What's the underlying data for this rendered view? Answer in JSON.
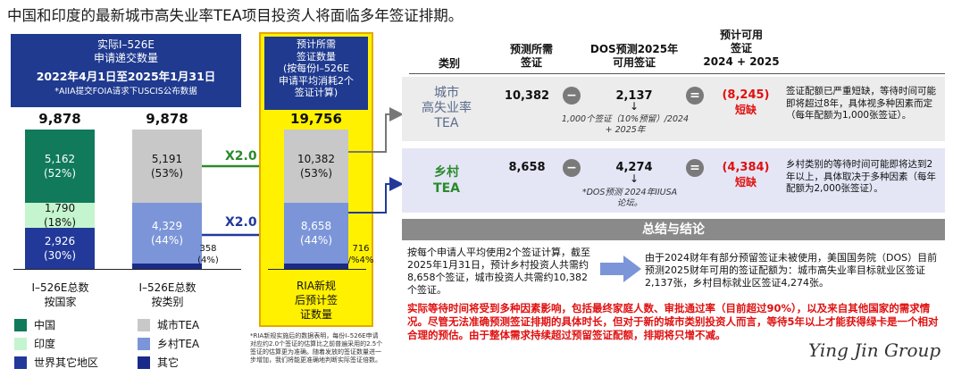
{
  "title": "中国和印度的最新城市高失业率TEA项目投资人将面临多年签证排期。",
  "left_panel": {
    "header_line1": "实际I–526E",
    "header_line2": "申请递交数量",
    "header_date": "2022年4月1日至2025年1月31日",
    "header_note": "*AIIA提交FOIA请求下USCIS公布数据"
  },
  "chart_data": [
    {
      "type": "bar",
      "name": "by_country",
      "total": "9,878",
      "label_line1": "I–526E总数",
      "label_line2": "按国家",
      "segments": [
        {
          "key": "中国",
          "value": 5162,
          "value_label": "5,162",
          "pct": "(52%)",
          "color": "#107a5a",
          "text_color": "#ffffff"
        },
        {
          "key": "印度",
          "value": 1790,
          "value_label": "1,790",
          "pct": "(18%)",
          "color": "#c5f5cf",
          "text_color": "#111111"
        },
        {
          "key": "世界其它地区",
          "value": 2926,
          "value_label": "2,926",
          "pct": "(30%)",
          "color": "#22399a",
          "text_color": "#ffffff"
        }
      ]
    },
    {
      "type": "bar",
      "name": "by_category",
      "total": "9,878",
      "label_line1": "I–526E总数",
      "label_line2": "按类别",
      "segments": [
        {
          "key": "城市TEA",
          "value": 5191,
          "value_label": "5,191",
          "pct": "(53%)",
          "color": "#c8c8c8",
          "text_color": "#111111"
        },
        {
          "key": "乡村TEA",
          "value": 4329,
          "value_label": "4,329",
          "pct": "(44%)",
          "color": "#7b95d8",
          "text_color": "#ffffff"
        },
        {
          "key": "其它",
          "value": 358,
          "value_label": "358",
          "pct": "(4%)",
          "color": "#1a2a88",
          "text_color": "#111111"
        }
      ]
    },
    {
      "type": "bar",
      "name": "projected_visas",
      "total": "19,756",
      "segments": [
        {
          "key": "城市TEA",
          "value": 10382,
          "value_label": "10,382",
          "pct": "(53%)",
          "color": "#c8c8c8",
          "text_color": "#111111"
        },
        {
          "key": "乡村TEA",
          "value": 8658,
          "value_label": "8,658",
          "pct": "(44%)",
          "color": "#7b95d8",
          "text_color": "#ffffff"
        },
        {
          "key": "其它",
          "value": 716,
          "value_label": "716",
          "pct": "/%4%",
          "color": "#1a2a88",
          "text_color": "#111111"
        }
      ]
    }
  ],
  "multiplier_top": "X2.0",
  "multiplier_bottom": "X2.0",
  "yellow_panel": {
    "h1": "预计所需",
    "h2": "签证数量",
    "h3": "(按每份I–526E",
    "h4": "申请平均消耗2个",
    "h5": "签证计算)",
    "bottom1": "RIA新规",
    "bottom2": "后预计签",
    "bottom3": "证数量"
  },
  "legend": {
    "china": "中国",
    "india": "印度",
    "row": "世界其它地区",
    "urban": "城市TEA",
    "rural": "乡村TEA",
    "other": "其它"
  },
  "footnote": "*RIA新规实施后的数据表明，每份I–526E申请对应约2.0个签证的估算比之前普遍采用的2.5个签证的估算更为准确。随着发放的签证数量进一步增加，我们将能更准确地判断实际签证倍数。",
  "table": {
    "col_category": "类别",
    "col_needed_1": "预测所需",
    "col_needed_2": "签证",
    "col_dos_1": "DOS预测2025年",
    "col_dos_2": "可用签证",
    "col_avail_1": "预计可用",
    "col_avail_2": "签证",
    "col_avail_3": "2024 + 2025",
    "minus": "−",
    "equals": "=",
    "rows": [
      {
        "cat1": "城市",
        "cat2": "高失业率",
        "cat3": "TEA",
        "needed": "10,382",
        "dos": "2,137",
        "dos_note": "1,000个签证（10%预留）/2024 + 2025年",
        "avail": "(8,245)",
        "short": "短缺",
        "comment": "签证配额已严重短缺，等待时间可能即将超过8年，具体视多种因素而定（每年配额为1,000张签证）。"
      },
      {
        "cat1": "乡村",
        "cat2": "TEA",
        "needed": "8,658",
        "dos": "4,274",
        "dos_note": "*DOS预测 2024年IIUSA论坛。",
        "avail": "(4,384)",
        "short": "短缺",
        "comment": "乡村类别的等待时间可能即将达到2年以上，具体取决于多种因素（每年配额为2,000张签证）。"
      }
    ]
  },
  "summary": {
    "title": "总结与结论",
    "left": "按每个申请人平均使用2个签证计算，截至2025年1月31日，预计乡村投资人共需约8,658个签证，城市投资人共需约10,382个签证。",
    "right": "由于2024财年有部分预留签证未被使用，美国国务院（DOS）目前预测2025财年可用的签证配额为：城市高失业率目标就业区签证2,137张，乡村目标就业区签证4,274张。",
    "conclusion": "实际等待时间将受到多种因素影响，包括最终家庭人数、审批通过率（目前超过90%），以及来自其他国家的需求情况。尽管无法准确预测签证排期的具体时长，但对于新的城市类别投资人而言，等待5年以上才能获得绿卡是一个相对合理的预估。由于整体需求持续超过预留签证配额，排期将只增不减。"
  },
  "logo": "Ying Jin Group"
}
